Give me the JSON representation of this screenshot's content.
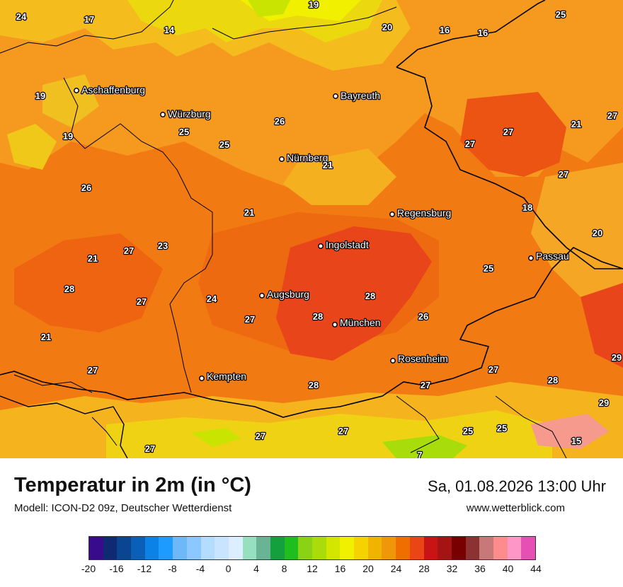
{
  "title": "Temperatur in 2m (in °C)",
  "subtitle": "Modell: ICON-D2 09z, Deutscher Wetterdienst",
  "datetime": "Sa, 01.08.2026 13:00 Uhr",
  "website": "www.wetterblick.com",
  "cities": [
    {
      "name": "Aschaffenburg"
    },
    {
      "name": "Würzburg"
    },
    {
      "name": "Bayreuth"
    },
    {
      "name": "Nürnberg"
    },
    {
      "name": "Regensburg"
    },
    {
      "name": "Ingolstadt"
    },
    {
      "name": "Passau"
    },
    {
      "name": "Augsburg"
    },
    {
      "name": "München"
    },
    {
      "name": "Rosenheim"
    },
    {
      "name": "Kempten"
    }
  ],
  "temperatures": [
    "24",
    "17",
    "14",
    "19",
    "20",
    "16",
    "16",
    "25",
    "19",
    "19",
    "26",
    "25",
    "25",
    "21",
    "27",
    "27",
    "21",
    "27",
    "26",
    "21",
    "18",
    "20",
    "27",
    "23",
    "21",
    "27",
    "25",
    "28",
    "27",
    "24",
    "28",
    "26",
    "27",
    "28",
    "21",
    "27",
    "28",
    "27",
    "27",
    "29",
    "28",
    "29",
    "27",
    "27",
    "25",
    "25",
    "15",
    "27",
    "7"
  ],
  "legend": {
    "colors": [
      "#380a8c",
      "#0d2a73",
      "#0a4591",
      "#0a5fb6",
      "#0a82e6",
      "#1e9bff",
      "#6cb8f8",
      "#8cc8ff",
      "#b4dcff",
      "#c8e4ff",
      "#dceeff",
      "#96e0c0",
      "#6ab496",
      "#14a03c",
      "#1ebe1e",
      "#8cd214",
      "#a8dc0a",
      "#d2e600",
      "#f0f000",
      "#f5d200",
      "#f0b400",
      "#f0960a",
      "#f06e00",
      "#e84614",
      "#c81414",
      "#a51414",
      "#780000",
      "#8c3232",
      "#c87878",
      "#ff8c8c",
      "#ff96c8",
      "#e650b4"
    ],
    "ticks": [
      "-20",
      "-16",
      "-12",
      "-8",
      "-4",
      "0",
      "4",
      "8",
      "12",
      "16",
      "20",
      "24",
      "28",
      "32",
      "36",
      "40",
      "44"
    ]
  }
}
